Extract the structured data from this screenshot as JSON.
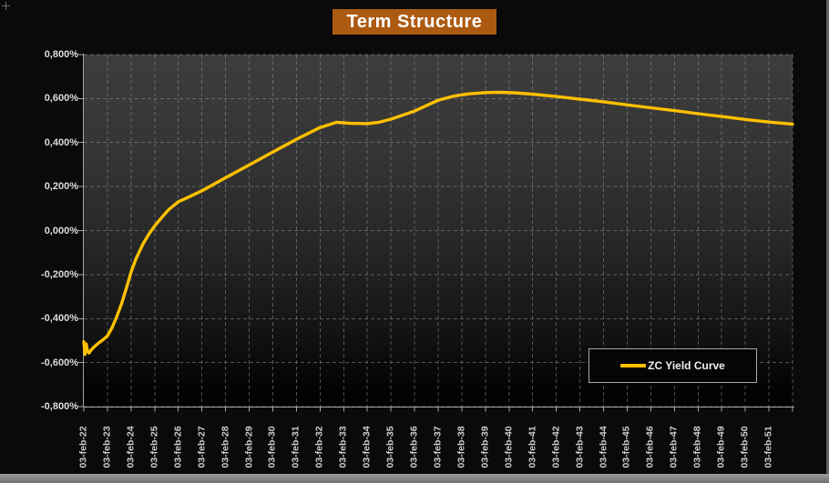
{
  "title": {
    "text": "Term Structure",
    "bg_color": "#ac5a11",
    "text_color": "#ffffff"
  },
  "legend": {
    "label": "ZC Yield Curve",
    "position": "bottom-right-inside"
  },
  "colors": {
    "curve": "#ffc000",
    "background": "#0a0a0a",
    "grid": "#9a9a9a",
    "axis_text": "#dcdcdc"
  },
  "chart_data": {
    "type": "line",
    "title": "Term Structure",
    "xlabel": "",
    "ylabel": "",
    "grid": "dashed",
    "legend_position": "bottom-right-inside",
    "ylim": [
      -0.8,
      0.8
    ],
    "y_ticks": [
      0.8,
      0.6,
      0.4,
      0.2,
      0.0,
      -0.2,
      -0.4,
      -0.6,
      -0.8
    ],
    "y_tick_labels": [
      "0,800%",
      "0,600%",
      "0,400%",
      "0,200%",
      "0,000%",
      "-0,200%",
      "-0,400%",
      "-0,600%",
      "-0,800%"
    ],
    "x_tick_labels": [
      "03-feb-22",
      "03-feb-23",
      "03-feb-24",
      "03-feb-25",
      "03-feb-26",
      "03-feb-27",
      "03-feb-28",
      "03-feb-29",
      "03-feb-30",
      "03-feb-31",
      "03-feb-32",
      "03-feb-33",
      "03-feb-34",
      "03-feb-35",
      "03-feb-36",
      "03-feb-37",
      "03-feb-38",
      "03-feb-39",
      "03-feb-40",
      "03-feb-41",
      "03-feb-42",
      "03-feb-43",
      "03-feb-44",
      "03-feb-45",
      "03-feb-46",
      "03-feb-47",
      "03-feb-48",
      "03-feb-49",
      "03-feb-50",
      "03-feb-51"
    ],
    "x_unit": "years_from_first_tick",
    "series": [
      {
        "name": "ZC Yield Curve",
        "color": "#ffc000",
        "points": [
          [
            0.0,
            -0.505
          ],
          [
            0.05,
            -0.562
          ],
          [
            0.1,
            -0.515
          ],
          [
            0.16,
            -0.548
          ],
          [
            0.22,
            -0.556
          ],
          [
            0.3,
            -0.544
          ],
          [
            0.45,
            -0.527
          ],
          [
            0.6,
            -0.513
          ],
          [
            0.8,
            -0.497
          ],
          [
            1.0,
            -0.479
          ],
          [
            1.2,
            -0.44
          ],
          [
            1.4,
            -0.389
          ],
          [
            1.6,
            -0.332
          ],
          [
            1.8,
            -0.262
          ],
          [
            2.0,
            -0.188
          ],
          [
            2.2,
            -0.13
          ],
          [
            2.5,
            -0.062
          ],
          [
            2.75,
            -0.017
          ],
          [
            3.0,
            0.021
          ],
          [
            3.3,
            0.06
          ],
          [
            3.6,
            0.096
          ],
          [
            4.0,
            0.131
          ],
          [
            4.25,
            0.143
          ],
          [
            5.0,
            0.181
          ],
          [
            6.0,
            0.24
          ],
          [
            7.0,
            0.298
          ],
          [
            8.0,
            0.357
          ],
          [
            9.0,
            0.415
          ],
          [
            10.0,
            0.468
          ],
          [
            10.7,
            0.492
          ],
          [
            11.3,
            0.487
          ],
          [
            12.0,
            0.486
          ],
          [
            12.5,
            0.492
          ],
          [
            13.0,
            0.506
          ],
          [
            14.0,
            0.543
          ],
          [
            15.0,
            0.592
          ],
          [
            15.7,
            0.612
          ],
          [
            16.3,
            0.621
          ],
          [
            17.0,
            0.627
          ],
          [
            17.6,
            0.628
          ],
          [
            18.2,
            0.626
          ],
          [
            19.0,
            0.62
          ],
          [
            20.0,
            0.609
          ],
          [
            21.0,
            0.597
          ],
          [
            22.0,
            0.585
          ],
          [
            23.0,
            0.571
          ],
          [
            24.0,
            0.558
          ],
          [
            25.0,
            0.545
          ],
          [
            26.0,
            0.531
          ],
          [
            27.0,
            0.518
          ],
          [
            28.0,
            0.505
          ],
          [
            29.0,
            0.493
          ],
          [
            30.0,
            0.484
          ]
        ]
      }
    ]
  }
}
